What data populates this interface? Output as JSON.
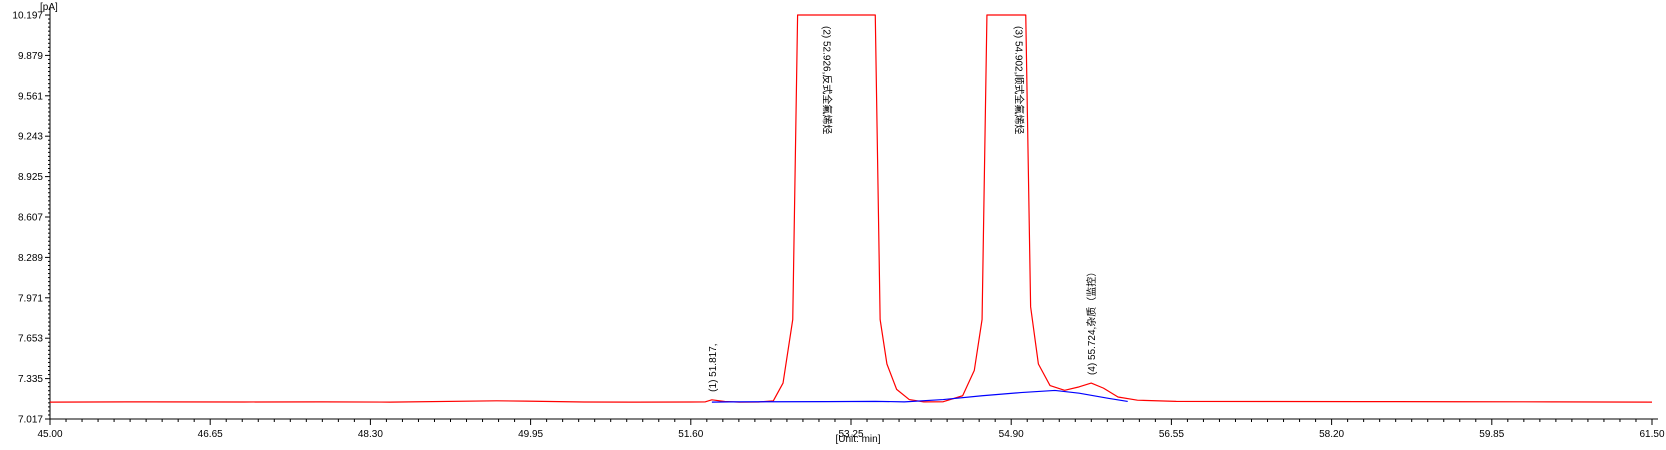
{
  "chart_data": {
    "type": "line",
    "title": "",
    "xlabel": "[Unit: min]",
    "ylabel": "[pA]",
    "xlim": [
      45.0,
      61.5
    ],
    "ylim": [
      7.017,
      10.197
    ],
    "x_tick_labels": [
      "45.00",
      "46.65",
      "48.30",
      "49.95",
      "51.60",
      "53.25",
      "54.90",
      "56.55",
      "58.20",
      "59.85",
      "61.50"
    ],
    "y_tick_labels": [
      "10.197",
      "9.879",
      "9.561",
      "9.243",
      "8.925",
      "8.607",
      "8.289",
      "7.971",
      "7.653",
      "7.335",
      "7.017"
    ],
    "grid": false,
    "series": [
      {
        "color": "#ff0000",
        "x": [
          45.0,
          46.0,
          47.0,
          47.8,
          48.5,
          49.6,
          49.9,
          50.5,
          51.0,
          51.6,
          51.75,
          51.817,
          51.95,
          52.1,
          52.3,
          52.45,
          52.55,
          52.65,
          52.7,
          53.5,
          53.55,
          53.62,
          53.72,
          53.85,
          54.0,
          54.2,
          54.4,
          54.52,
          54.6,
          54.65,
          55.05,
          55.1,
          55.18,
          55.3,
          55.45,
          55.6,
          55.724,
          55.85,
          56.0,
          56.2,
          56.6,
          57.5,
          58.5,
          59.5,
          60.5,
          61.5
        ],
        "y": [
          7.15,
          7.152,
          7.151,
          7.152,
          7.15,
          7.16,
          7.158,
          7.151,
          7.15,
          7.151,
          7.152,
          7.168,
          7.155,
          7.15,
          7.151,
          7.16,
          7.3,
          7.8,
          10.197,
          10.197,
          7.8,
          7.45,
          7.25,
          7.17,
          7.152,
          7.153,
          7.2,
          7.4,
          7.8,
          10.197,
          10.197,
          7.9,
          7.45,
          7.28,
          7.243,
          7.27,
          7.3,
          7.26,
          7.19,
          7.165,
          7.156,
          7.155,
          7.154,
          7.153,
          7.152,
          7.15
        ]
      },
      {
        "color": "#0000ff",
        "x": [
          51.817,
          52.0,
          52.5,
          53.0,
          53.5,
          53.8,
          54.2,
          54.6,
          55.0,
          55.35,
          55.6,
          55.9,
          56.1
        ],
        "y": [
          7.15,
          7.152,
          7.153,
          7.154,
          7.156,
          7.152,
          7.17,
          7.2,
          7.225,
          7.242,
          7.22,
          7.18,
          7.155
        ]
      }
    ],
    "annotations": [
      {
        "x": 51.817,
        "y": 7.168,
        "text": "(1) 51.817,"
      },
      {
        "x": 52.926,
        "y": 10.197,
        "text": "(2) 52.926,反式全氟烯烃"
      },
      {
        "x": 54.902,
        "y": 10.197,
        "text": "(3) 54.902,顺式全氟烯烃"
      },
      {
        "x": 55.724,
        "y": 7.3,
        "text": "(4) 55.724,杂质（监控）"
      }
    ]
  }
}
